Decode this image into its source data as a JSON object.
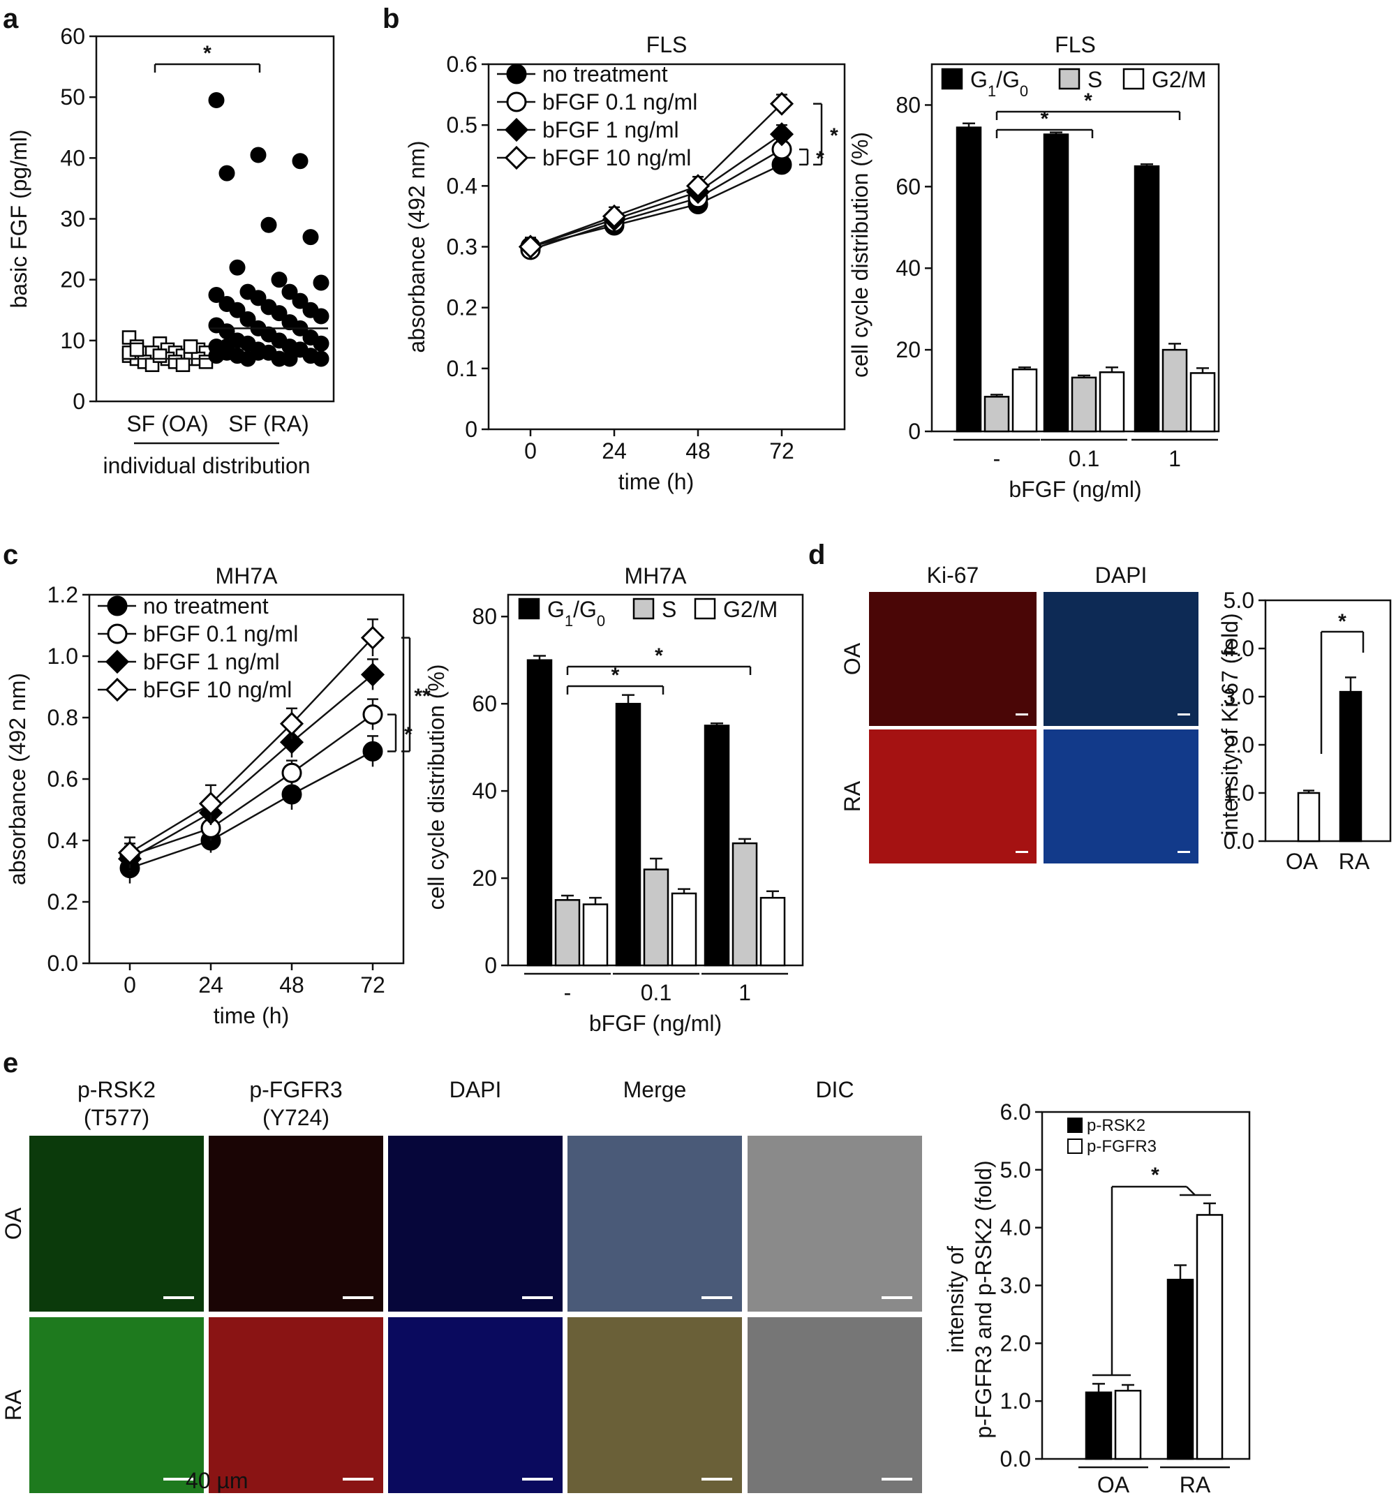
{
  "panels": {
    "a": "a",
    "b": "b",
    "c": "c",
    "d": "d",
    "e": "e"
  },
  "micro_d": {
    "cols": [
      "Ki-67",
      "DAPI"
    ],
    "rows": [
      "OA",
      "RA"
    ],
    "colors": {
      "ki67_oa": "#4a0606",
      "ki67_ra": "#a51212",
      "dapi_oa": "#0d2a55",
      "dapi_ra": "#123a8a"
    }
  },
  "micro_e": {
    "cols": [
      "p-RSK2\n(T577)",
      "p-FGFR3\n(Y724)",
      "DAPI",
      "Merge",
      "DIC"
    ],
    "col_line1": [
      "p-RSK2",
      "p-FGFR3",
      "DAPI",
      "Merge",
      "DIC"
    ],
    "col_line2": [
      "(T577)",
      "(Y724)",
      "",
      "",
      ""
    ],
    "rows": [
      "OA",
      "RA"
    ],
    "scale_text": "40 µm",
    "colors": {
      "green_oa": "#0b3a0b",
      "green_ra": "#1e7a1e",
      "red_oa": "#1a0505",
      "red_ra": "#8a1414",
      "blue_oa": "#06063a",
      "blue_ra": "#0a0a5e",
      "merge_oa": "#4a5a78",
      "merge_ra": "#6a6038",
      "dic_oa": "#8a8a8a",
      "dic_ra": "#767676"
    }
  },
  "chart_data": [
    {
      "id": "a",
      "type": "scatter",
      "title": "",
      "ylabel": "basic FGF (pg/ml)",
      "xlabel": "individual distribution",
      "ylim": [
        0,
        60
      ],
      "yticks": [
        0,
        10,
        20,
        30,
        40,
        50,
        60
      ],
      "categories": [
        "SF (OA)",
        "SF (RA)"
      ],
      "means": [
        7,
        12
      ],
      "significance": "*",
      "series": [
        {
          "name": "SF (OA)",
          "marker": "open-square",
          "values": [
            10.5,
            9.5,
            9,
            9,
            8.5,
            8.5,
            8,
            8,
            8,
            8,
            7.5,
            7.5,
            7.5,
            7,
            7,
            7,
            7,
            6.5,
            6.5,
            6.5,
            6,
            6,
            8,
            7.5,
            9,
            8.5
          ]
        },
        {
          "name": "SF (RA)",
          "marker": "filled-circle",
          "values": [
            49.5,
            40.5,
            39.5,
            37.5,
            29,
            27,
            22,
            20,
            19.5,
            18,
            18,
            17.5,
            17,
            16.5,
            16,
            15.5,
            15,
            15,
            14.5,
            14,
            13.5,
            13,
            12.5,
            12,
            12,
            11.5,
            11,
            10.5,
            10,
            10,
            9.5,
            9.5,
            9,
            9,
            8.5,
            8.5,
            8,
            8,
            7.5,
            7.5,
            7,
            7,
            7,
            7,
            7.5,
            8,
            8.5,
            9
          ]
        }
      ]
    },
    {
      "id": "b1",
      "type": "line",
      "title": "FLS",
      "xlabel": "time (h)",
      "ylabel": "absorbance (492 nm)",
      "x": [
        0,
        24,
        48,
        72
      ],
      "ylim": [
        0,
        0.6
      ],
      "yticks": [
        "0",
        "0.1",
        "0.2",
        "0.3",
        "0.4",
        "0.5",
        "0.6"
      ],
      "series": [
        {
          "name": "no treatment",
          "marker": "filled-circle",
          "values": [
            0.3,
            0.335,
            0.37,
            0.435
          ],
          "err": [
            0.015,
            0.015,
            0.015,
            0.015
          ]
        },
        {
          "name": "bFGF 0.1 ng/ml",
          "marker": "open-circle",
          "values": [
            0.295,
            0.34,
            0.38,
            0.46
          ],
          "err": [
            0.015,
            0.015,
            0.015,
            0.015
          ]
        },
        {
          "name": "bFGF 1 ng/ml",
          "marker": "filled-diamond",
          "values": [
            0.3,
            0.345,
            0.39,
            0.485
          ],
          "err": [
            0.015,
            0.015,
            0.015,
            0.015
          ]
        },
        {
          "name": "bFGF 10 ng/ml",
          "marker": "open-diamond",
          "values": [
            0.3,
            0.35,
            0.4,
            0.535
          ],
          "err": [
            0.015,
            0.015,
            0.015,
            0.015
          ]
        }
      ],
      "significance": [
        "*",
        "*"
      ]
    },
    {
      "id": "b2",
      "type": "bar",
      "title": "FLS",
      "xlabel": "bFGF (ng/ml)",
      "ylabel": "cell cycle distribution (%)",
      "ylim": [
        0,
        90
      ],
      "yticks": [
        0,
        20,
        40,
        60,
        80
      ],
      "categories": [
        "-",
        "0.1",
        "1"
      ],
      "legend_labels": [
        "G",
        "S",
        "G2/M"
      ],
      "series": [
        {
          "name": "G1/G0",
          "color": "#000000",
          "values": [
            74.5,
            72.8,
            65
          ],
          "err": [
            1,
            0.5,
            0.5
          ]
        },
        {
          "name": "S",
          "color": "#c8c8c8",
          "values": [
            8.5,
            13.2,
            20
          ],
          "err": [
            0.5,
            0.5,
            1.5
          ]
        },
        {
          "name": "G2/M",
          "color": "#ffffff",
          "values": [
            15.2,
            14.5,
            14.3
          ],
          "err": [
            0.5,
            1.2,
            1.2
          ]
        }
      ],
      "significance": [
        "*",
        "*"
      ]
    },
    {
      "id": "c1",
      "type": "line",
      "title": "MH7A",
      "xlabel": "time (h)",
      "ylabel": "absorbance (492 nm)",
      "x": [
        0,
        24,
        48,
        72
      ],
      "ylim": [
        0,
        1.2
      ],
      "yticks": [
        "0.0",
        "0.2",
        "0.4",
        "0.6",
        "0.8",
        "1.0",
        "1.2"
      ],
      "series": [
        {
          "name": "no treatment",
          "marker": "filled-circle",
          "values": [
            0.31,
            0.4,
            0.55,
            0.69
          ],
          "err": [
            0.05,
            0.04,
            0.05,
            0.05
          ]
        },
        {
          "name": "bFGF 0.1 ng/ml",
          "marker": "open-circle",
          "values": [
            0.35,
            0.44,
            0.62,
            0.81
          ],
          "err": [
            0.04,
            0.04,
            0.04,
            0.05
          ]
        },
        {
          "name": "bFGF 1 ng/ml",
          "marker": "filled-diamond",
          "values": [
            0.34,
            0.49,
            0.72,
            0.94
          ],
          "err": [
            0.04,
            0.04,
            0.05,
            0.05
          ]
        },
        {
          "name": "bFGF 10 ng/ml",
          "marker": "open-diamond",
          "values": [
            0.36,
            0.52,
            0.78,
            1.06
          ],
          "err": [
            0.05,
            0.06,
            0.05,
            0.06
          ]
        }
      ],
      "significance": [
        "*",
        "**"
      ]
    },
    {
      "id": "c2",
      "type": "bar",
      "title": "MH7A",
      "xlabel": "bFGF (ng/ml)",
      "ylabel": "cell cycle distribution (%)",
      "ylim": [
        0,
        85
      ],
      "yticks": [
        0,
        20,
        40,
        60,
        80
      ],
      "categories": [
        "-",
        "0.1",
        "1"
      ],
      "legend_labels": [
        "G",
        "S",
        "G2/M"
      ],
      "series": [
        {
          "name": "G1/G0",
          "color": "#000000",
          "values": [
            70,
            60,
            55
          ],
          "err": [
            1,
            2,
            0.5
          ]
        },
        {
          "name": "S",
          "color": "#c8c8c8",
          "values": [
            15,
            22,
            28
          ],
          "err": [
            1,
            2.5,
            1
          ]
        },
        {
          "name": "G2/M",
          "color": "#ffffff",
          "values": [
            14,
            16.5,
            15.5
          ],
          "err": [
            1.5,
            1,
            1.5
          ]
        }
      ],
      "significance": [
        "*",
        "*"
      ]
    },
    {
      "id": "d",
      "type": "bar",
      "title": "",
      "xlabel": "",
      "ylabel": "intensity of Ki-67 (fold)",
      "ylim": [
        0,
        5
      ],
      "yticks": [
        "0.0",
        "1.0",
        "2.0",
        "3.0",
        "4.0",
        "5.0"
      ],
      "categories": [
        "OA",
        "RA"
      ],
      "series": [
        {
          "name": "",
          "values": [
            1.0,
            3.1
          ],
          "err": [
            0.05,
            0.3
          ],
          "colors": [
            "#ffffff",
            "#000000"
          ]
        }
      ],
      "significance": [
        "*"
      ]
    },
    {
      "id": "e",
      "type": "bar",
      "title": "",
      "xlabel": "",
      "ylabel_lines": [
        "intensity of",
        "p-FGFR3 and p-RSK2 (fold)"
      ],
      "ylim": [
        0,
        6
      ],
      "yticks": [
        "0.0",
        "1.0",
        "2.0",
        "3.0",
        "4.0",
        "5.0",
        "6.0"
      ],
      "categories": [
        "OA",
        "RA"
      ],
      "series": [
        {
          "name": "p-RSK2",
          "color": "#000000",
          "values": [
            1.15,
            3.1
          ],
          "err": [
            0.15,
            0.25
          ]
        },
        {
          "name": "p-FGFR3",
          "color": "#ffffff",
          "values": [
            1.18,
            4.22
          ],
          "err": [
            0.1,
            0.2
          ]
        }
      ],
      "significance": [
        "*"
      ]
    }
  ]
}
